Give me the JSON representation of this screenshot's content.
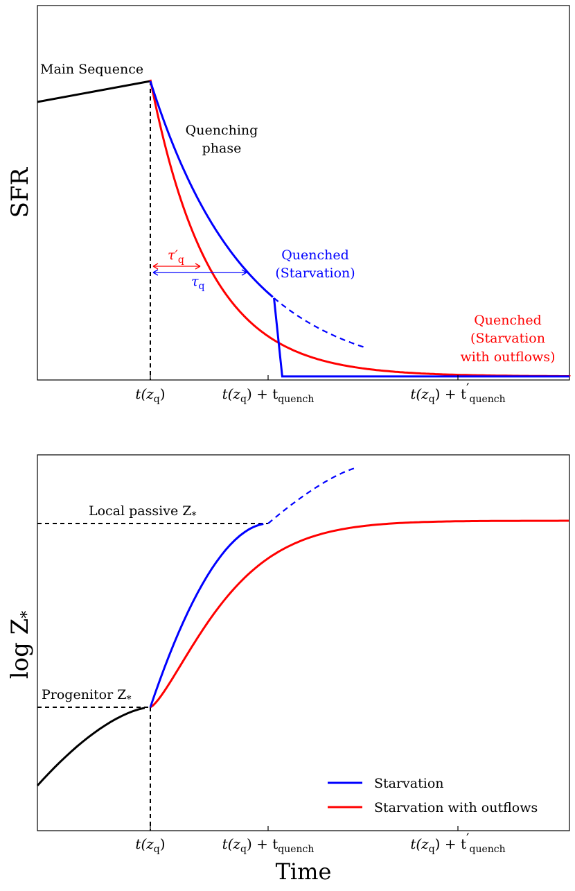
{
  "chart_data": [
    {
      "type": "line",
      "panel": "top",
      "ylabel": "SFR",
      "xlabel": "",
      "x_ticks": [
        {
          "base": "t(z",
          "sub": "q",
          "tail": ")"
        },
        {
          "base": "t(z",
          "sub": "q",
          "mid": ") + t",
          "sub2": "quench",
          "prime": ""
        },
        {
          "base": "t(z",
          "sub": "q",
          "mid": ") + t",
          "sub2": "quench",
          "prime": "′"
        }
      ],
      "x_ticks_data": [
        2,
        3,
        5
      ],
      "xlim": [
        1,
        5.8
      ],
      "ylim": [
        0,
        10
      ],
      "annotations": {
        "main_sequence": "Main Sequence",
        "quenching_phase_1": "Quenching",
        "quenching_phase_2": "phase",
        "tau_q_prime": "τ′",
        "tau_q": "τ",
        "tau_sub": "q",
        "quenched_blue_1": "Quenched",
        "quenched_blue_2": "(Starvation)",
        "quenched_red_1": "Quenched",
        "quenched_red_2": "(Starvation",
        "quenched_red_3": "with outflows)"
      },
      "series": [
        {
          "name": "Main Sequence",
          "color": "#000000",
          "x": [
            1,
            2
          ],
          "y": [
            9.3,
            10.0
          ]
        },
        {
          "name": "Starvation",
          "color": "#0000ff",
          "x0": 2,
          "y0": 10.0,
          "tau": 0.8,
          "x_quench": 3.05,
          "y_floor": 0.0,
          "dashed_end": 3.85
        },
        {
          "name": "Starvation with outflows",
          "color": "#ff0000",
          "x0": 2,
          "y0": 10.0,
          "tau": 0.5,
          "x_end": 5.8
        }
      ]
    },
    {
      "type": "line",
      "panel": "bottom",
      "ylabel": "log Z",
      "ylabel_sub": "*",
      "xlabel": "Time",
      "xlim": [
        1,
        5.8
      ],
      "ylim": [
        0,
        10
      ],
      "x_ticks_data": [
        2,
        3,
        5
      ],
      "annotations": {
        "local_passive": "Local passive Z",
        "progenitor": "Progenitor Z",
        "star_sub": "*"
      },
      "legend": {
        "position": "lower-right",
        "entries": [
          {
            "label": "Starvation",
            "color": "#0000ff"
          },
          {
            "label": "Starvation with outflows",
            "color": "#ff0000"
          }
        ]
      },
      "series": [
        {
          "name": "Progenitor",
          "color": "#000000",
          "x": [
            1,
            2
          ],
          "y": [
            1.3,
            3.3
          ]
        },
        {
          "name": "Starvation",
          "color": "#0000ff",
          "y_start": 3.3,
          "y_plateau": 8.0,
          "x_plateau": 3.05,
          "x_end": 5.8,
          "dashed_to": 3.85
        },
        {
          "name": "Starvation with outflows",
          "color": "#ff0000",
          "y_start": 3.3,
          "y_asym": 8.1,
          "x_end": 5.8
        }
      ]
    }
  ]
}
